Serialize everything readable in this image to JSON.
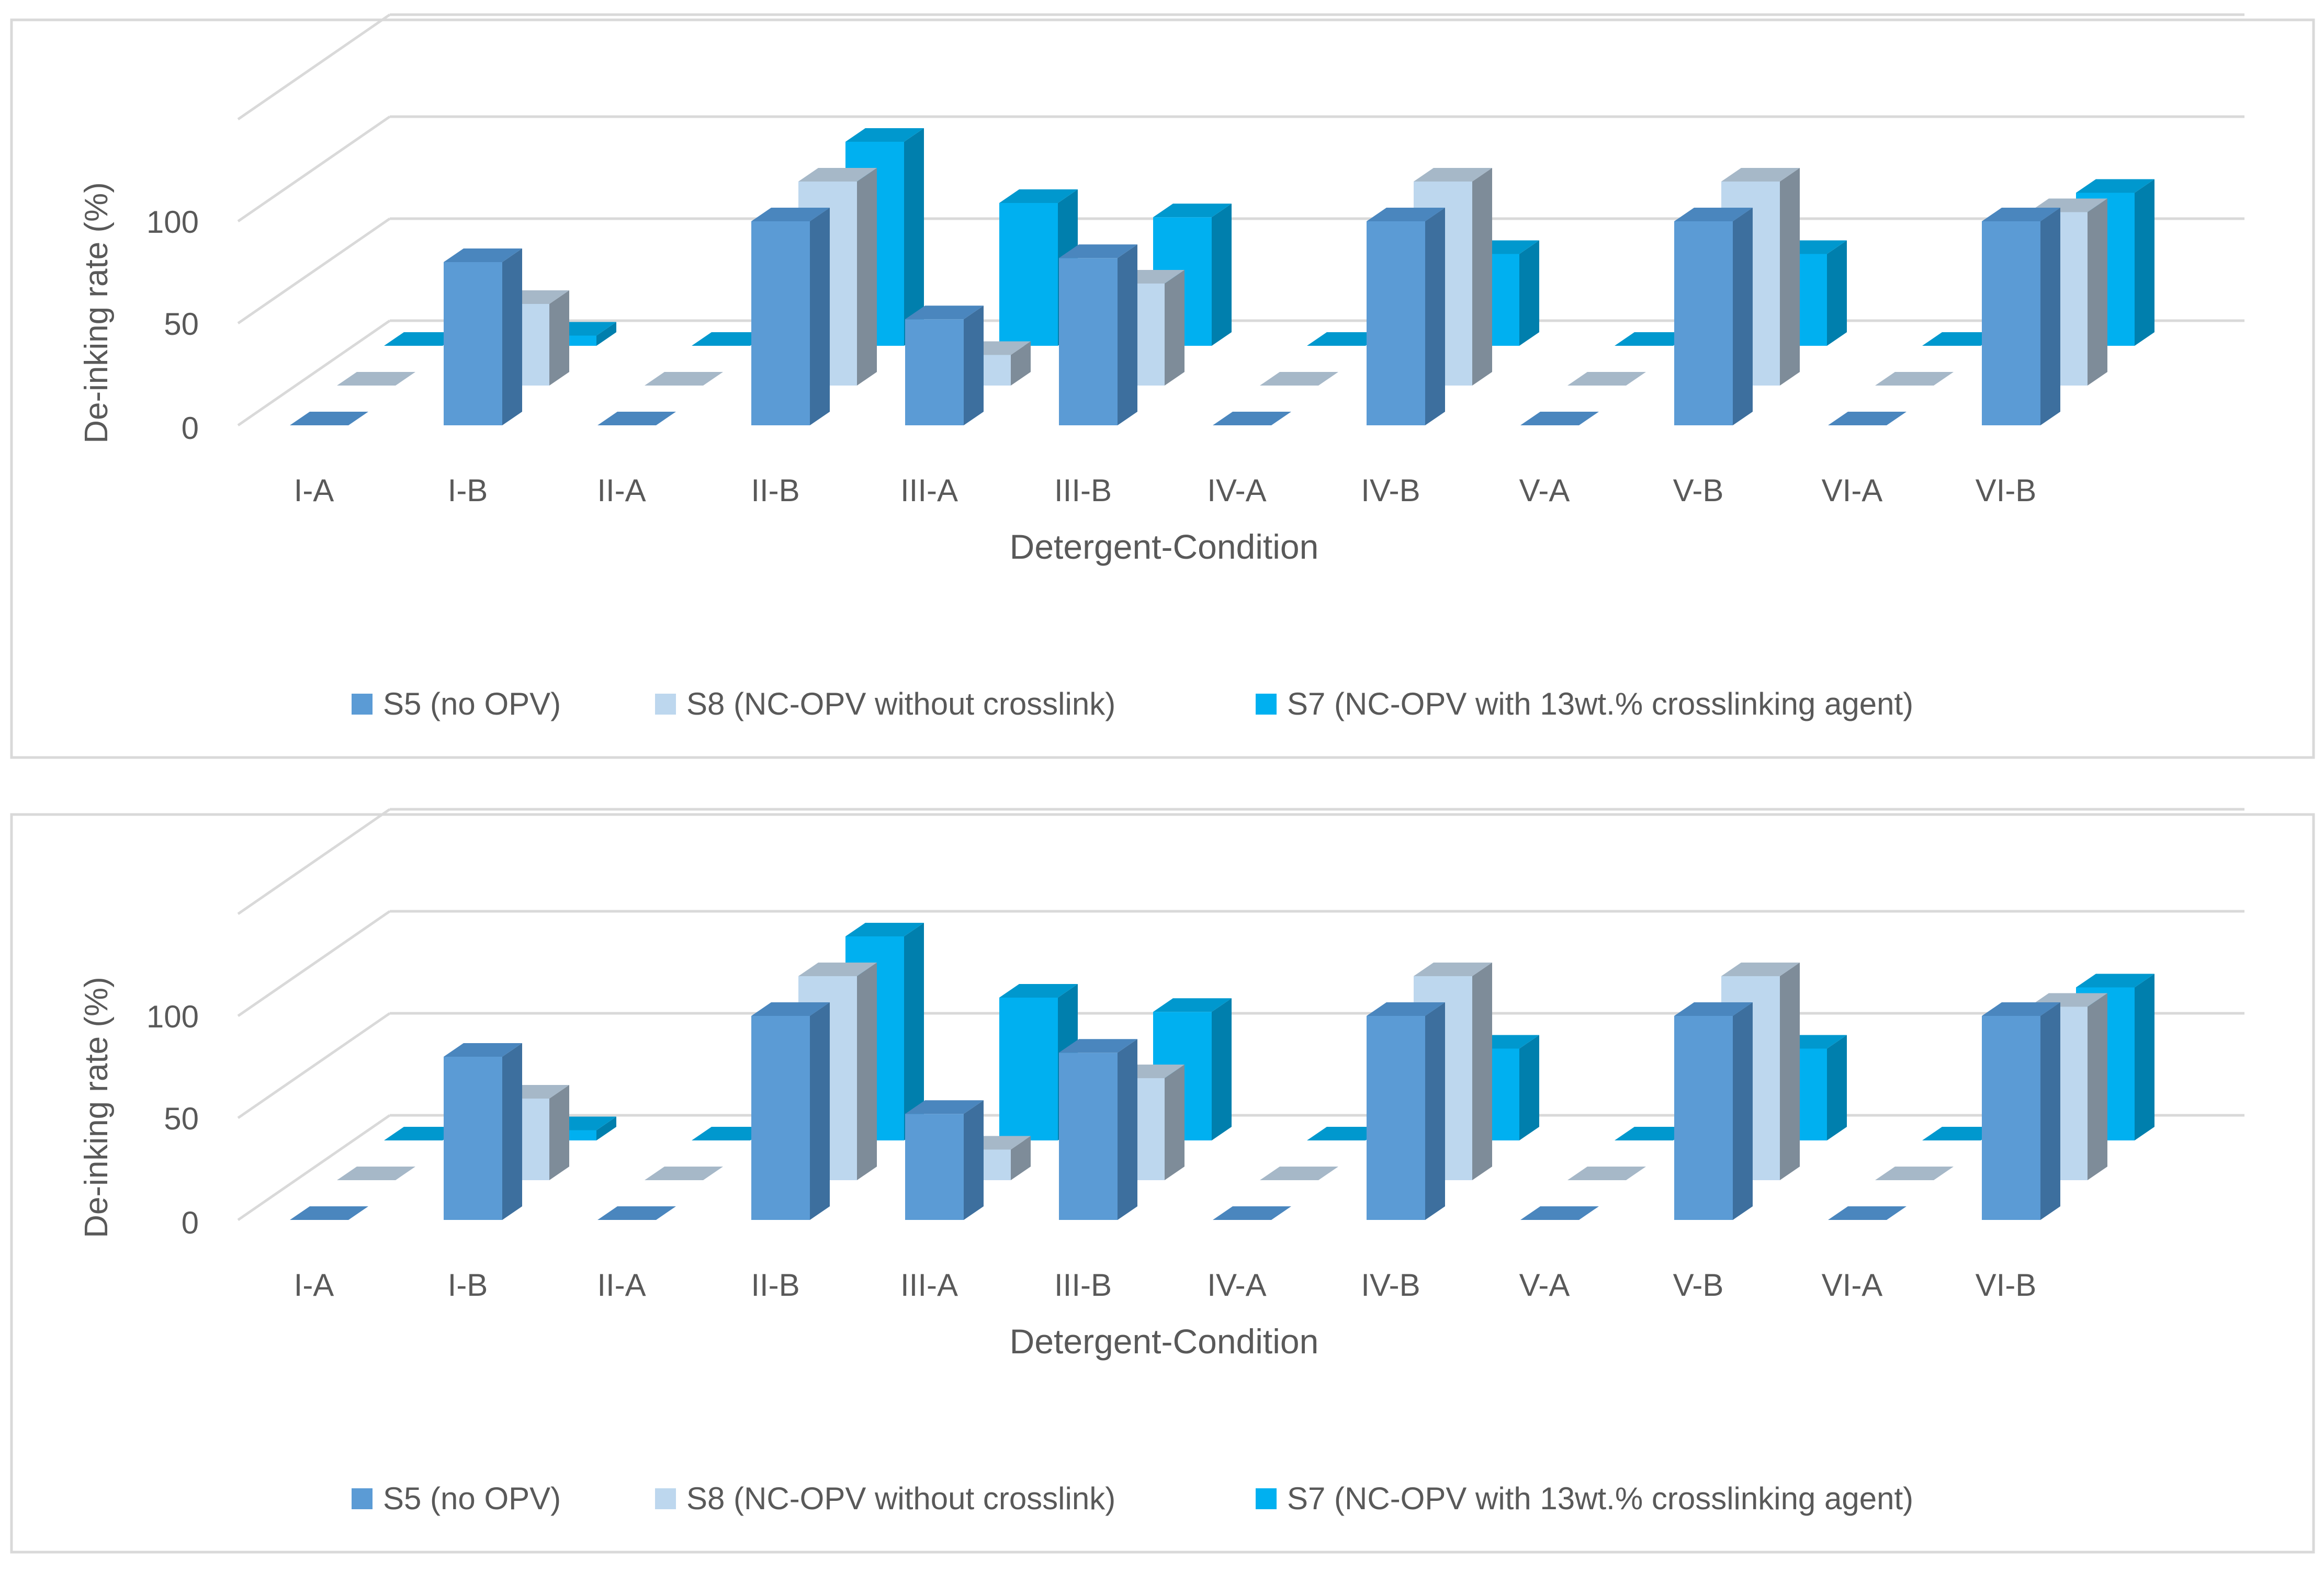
{
  "colors": {
    "S5": {
      "front": "#5B9BD5",
      "top": "#4A86BE",
      "side": "#3D6F9E"
    },
    "S8": {
      "front": "#BDD7EE",
      "top": "#A6B8C8",
      "side": "#7E8C99"
    },
    "S7": {
      "front": "#00B0F0",
      "top": "#0098CE",
      "side": "#007FAD"
    },
    "grid": "#D9D9D9",
    "text": "#595959",
    "border": "#D9D9D9"
  },
  "chart_data": [
    {
      "type": "bar",
      "variant": "3d-clustered-column",
      "title": "",
      "xlabel": "Detergent-Condition",
      "ylabel": "De-inking rate (%)",
      "ylim": [
        0,
        150
      ],
      "yticks": [
        "0",
        "50",
        "100"
      ],
      "grid": true,
      "legend_position": "bottom",
      "categories": [
        "I-A",
        "I-B",
        "II-A",
        "II-B",
        "III-A",
        "III-B",
        "IV-A",
        "IV-B",
        "V-A",
        "V-B",
        "VI-A",
        "VI-B"
      ],
      "series": [
        {
          "key": "S5",
          "name": "S5 (no OPV)",
          "values": [
            0,
            80,
            0,
            100,
            52,
            82,
            0,
            100,
            0,
            100,
            0,
            100
          ]
        },
        {
          "key": "S8",
          "name": "S8 (NC-OPV without crosslink)",
          "values": [
            0,
            40,
            0,
            100,
            15,
            50,
            0,
            100,
            0,
            100,
            0,
            85
          ]
        },
        {
          "key": "S7",
          "name": "S7 (NC-OPV with 13wt.% crosslinking agent)",
          "values": [
            0,
            5,
            0,
            100,
            70,
            63,
            0,
            45,
            0,
            45,
            0,
            75
          ]
        }
      ]
    },
    {
      "type": "bar",
      "variant": "3d-clustered-column",
      "title": "",
      "xlabel": "Detergent-Condition",
      "ylabel": "De-inking rate (%)",
      "ylim": [
        0,
        150
      ],
      "yticks": [
        "0",
        "50",
        "100"
      ],
      "grid": true,
      "legend_position": "bottom",
      "categories": [
        "I-A",
        "I-B",
        "II-A",
        "II-B",
        "III-A",
        "III-B",
        "IV-A",
        "IV-B",
        "V-A",
        "V-B",
        "VI-A",
        "VI-B"
      ],
      "series": [
        {
          "key": "S5",
          "name": "S5 (no OPV)",
          "values": [
            0,
            80,
            0,
            100,
            52,
            82,
            0,
            100,
            0,
            100,
            0,
            100
          ]
        },
        {
          "key": "S8",
          "name": "S8 (NC-OPV without crosslink)",
          "values": [
            0,
            40,
            0,
            100,
            15,
            50,
            0,
            100,
            0,
            100,
            0,
            85
          ]
        },
        {
          "key": "S7",
          "name": "S7 (NC-OPV with 13wt.% crosslinking agent)",
          "values": [
            0,
            5,
            0,
            100,
            70,
            63,
            0,
            45,
            0,
            45,
            0,
            75
          ]
        }
      ]
    }
  ]
}
